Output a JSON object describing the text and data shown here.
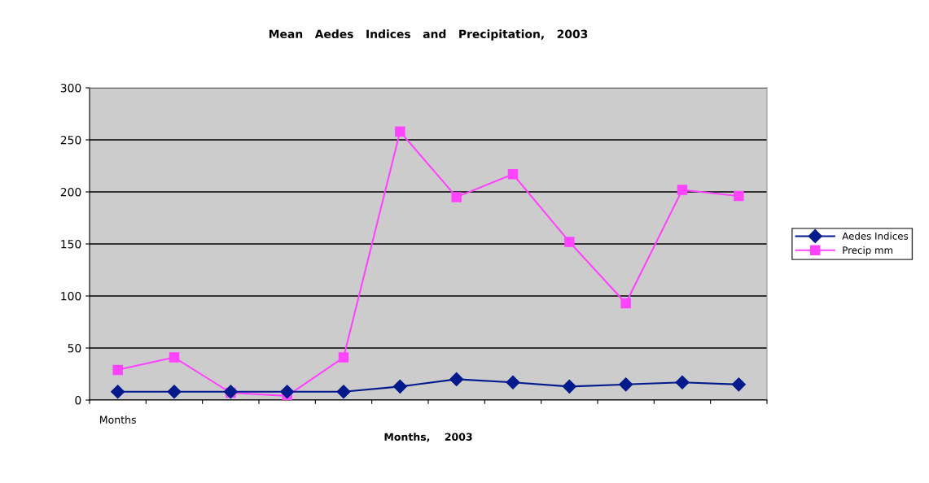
{
  "chart_data": {
    "type": "line",
    "title": "Mean   Aedes   Indices   and   Precipitation,   2003",
    "xlabel": "Months,    2003",
    "categories": [
      "Months",
      null,
      null,
      null,
      null,
      null,
      null,
      null,
      null,
      null,
      null,
      null
    ],
    "series": [
      {
        "name": "Aedes Indices",
        "color": "#001a8c",
        "marker": "diamond",
        "values": [
          8,
          8,
          8,
          8,
          8,
          13,
          20,
          17,
          13,
          15,
          17,
          15
        ]
      },
      {
        "name": "Precip mm",
        "color": "#ff44ff",
        "marker": "square",
        "values": [
          29,
          41,
          7,
          4,
          41,
          258,
          195,
          217,
          152,
          93,
          202,
          196
        ]
      }
    ],
    "ylim": [
      0,
      300
    ],
    "yticks": [
      0,
      50,
      100,
      150,
      200,
      250,
      300
    ],
    "grid": "y",
    "legend": "right"
  }
}
